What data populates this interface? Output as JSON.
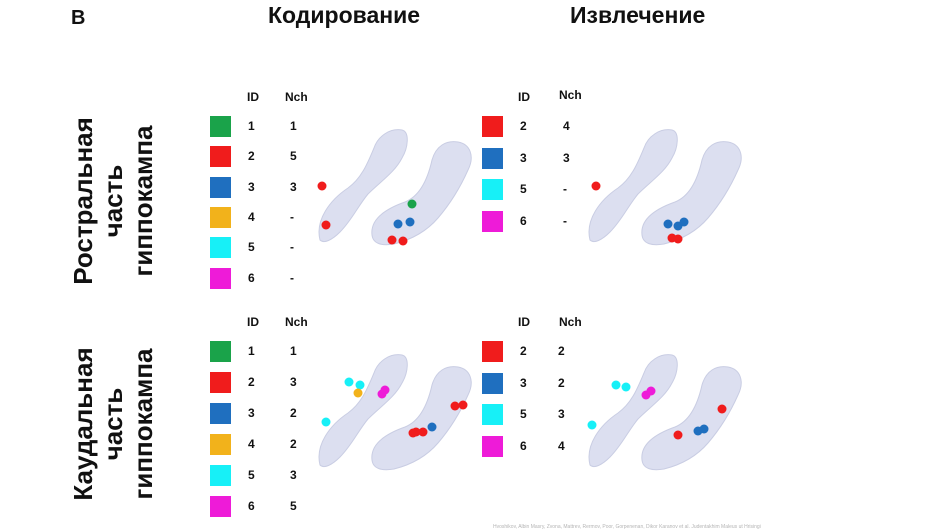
{
  "panel_letter": "B",
  "columns": [
    "Кодирование",
    "Извлечение"
  ],
  "rows": [
    {
      "label_lines": [
        "Ростральная",
        "часть",
        "гиппокампа"
      ]
    },
    {
      "label_lines": [
        "Каудальная",
        "часть",
        "гиппокампа"
      ]
    }
  ],
  "headers": {
    "id": "ID",
    "nch": "Nch"
  },
  "colors": {
    "1": "#1aa34a",
    "2": "#f01c1c",
    "3": "#1f6fbf",
    "4": "#f2b21b",
    "5": "#17f0f7",
    "6": "#ee1bd8",
    "hippocampus": "#dcdff0"
  },
  "tables": {
    "rostral_encoding": [
      {
        "id": "1",
        "nch": "1"
      },
      {
        "id": "2",
        "nch": "5"
      },
      {
        "id": "3",
        "nch": "3"
      },
      {
        "id": "4",
        "nch": "-"
      },
      {
        "id": "5",
        "nch": "-"
      },
      {
        "id": "6",
        "nch": "-"
      }
    ],
    "rostral_retrieval": [
      {
        "id": "2",
        "nch": "4"
      },
      {
        "id": "3",
        "nch": "3"
      },
      {
        "id": "5",
        "nch": "-"
      },
      {
        "id": "6",
        "nch": "-"
      }
    ],
    "caudal_encoding": [
      {
        "id": "1",
        "nch": "1"
      },
      {
        "id": "2",
        "nch": "3"
      },
      {
        "id": "3",
        "nch": "2"
      },
      {
        "id": "4",
        "nch": "2"
      },
      {
        "id": "5",
        "nch": "3"
      },
      {
        "id": "6",
        "nch": "5"
      }
    ],
    "caudal_retrieval": [
      {
        "id": "2",
        "nch": "2"
      },
      {
        "id": "3",
        "nch": "2"
      },
      {
        "id": "5",
        "nch": "3"
      },
      {
        "id": "6",
        "nch": "4"
      }
    ]
  },
  "footer": "Hvoshikov, Albin Masry, Zvona, Mattrev, Rermov, Poor, Gorpenenan, Dikor Karanov et al. Judentakhim Maleus ut Hrisingi"
}
